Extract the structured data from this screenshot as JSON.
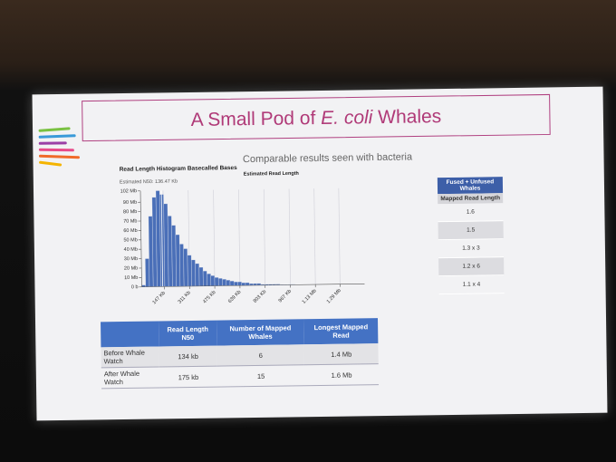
{
  "title": {
    "before": "A Small Pod of ",
    "italic": "E. coli",
    "after": " Whales"
  },
  "subtitle": "Comparable results seen with bacteria",
  "chart_data": {
    "type": "histogram",
    "title": "Read Length Histogram Basecalled Bases",
    "x_label": "Estimated Read Length",
    "n50": {
      "value": 136.47,
      "label": "Estimated N50: 136.47 Kb"
    },
    "color": "#4a6fb8",
    "bins": [
      0,
      25,
      50,
      75,
      100,
      125,
      150,
      175,
      200,
      225,
      250,
      275,
      300,
      325,
      350,
      375,
      400,
      425,
      450,
      475,
      500,
      525,
      550,
      575,
      600,
      625,
      650,
      675,
      700,
      725,
      750,
      775,
      800,
      825,
      850,
      875,
      900,
      925,
      950,
      975,
      1000
    ],
    "values": [
      2,
      30,
      75,
      95,
      102,
      98,
      88,
      75,
      65,
      55,
      45,
      40,
      33,
      28,
      24,
      20,
      16,
      13,
      11,
      9,
      8,
      7,
      6,
      5,
      4,
      4,
      3,
      3,
      2,
      2,
      2,
      1,
      1,
      1,
      1,
      1,
      0.5,
      0.5,
      0.5,
      0.5
    ],
    "xlim": [
      0,
      1450
    ],
    "xticks": [
      {
        "value": 147,
        "label": "147 Kb"
      },
      {
        "value": 311,
        "label": "311 Kb"
      },
      {
        "value": 475,
        "label": "475 Kb"
      },
      {
        "value": 639,
        "label": "639 Kb"
      },
      {
        "value": 803,
        "label": "803 Kb"
      },
      {
        "value": 967,
        "label": "967 Kb"
      },
      {
        "value": 1130,
        "label": "1.13 Mb"
      },
      {
        "value": 1290,
        "label": "1.29 Mb"
      }
    ],
    "ylim": [
      0,
      102
    ],
    "yticks": [
      {
        "value": 0,
        "label": "0 b"
      },
      {
        "value": 10,
        "label": "10 Mb"
      },
      {
        "value": 20,
        "label": "20 Mb"
      },
      {
        "value": 30,
        "label": "30 Mb"
      },
      {
        "value": 40,
        "label": "40 Mb"
      },
      {
        "value": 50,
        "label": "50 Mb"
      },
      {
        "value": 60,
        "label": "60 Mb"
      },
      {
        "value": 70,
        "label": "70 Mb"
      },
      {
        "value": 80,
        "label": "80 Mb"
      },
      {
        "value": 90,
        "label": "90 Mb"
      },
      {
        "value": 102,
        "label": "102 Mb"
      }
    ],
    "grid": true
  },
  "side_table": {
    "header": "Fused + Unfused Whales",
    "subheader": "Mapped Read Length",
    "rows": [
      "1.6",
      "1.5",
      "1.3 x 3",
      "1.2 x 6",
      "1.1 x 4"
    ]
  },
  "table": {
    "header": [
      "Read Length N50",
      "Number of Mapped Whales",
      "Longest Mapped Read"
    ],
    "rows": [
      [
        "Before Whale Watch",
        "134 kb",
        "6",
        "1.4 Mb"
      ],
      [
        "After Whale Watch",
        "175 kb",
        "15",
        "1.6 Mb"
      ]
    ]
  }
}
